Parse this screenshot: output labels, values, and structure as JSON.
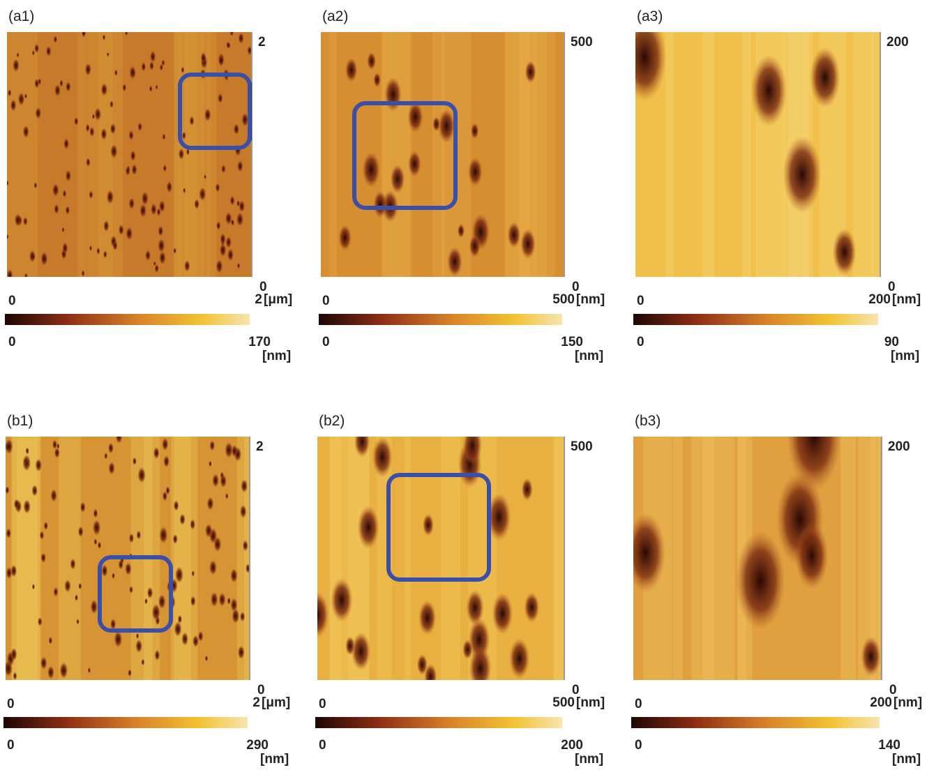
{
  "panels": [
    {
      "label": "(a1)",
      "y_max": "2",
      "y_min": "0",
      "x_min": "0",
      "x_max": "2",
      "xy_unit": "[μm]",
      "colorbar_min": "0",
      "colorbar_max": "170",
      "colorbar_unit": "[nm]"
    },
    {
      "label": "(a2)",
      "y_max": "500",
      "y_min": "0",
      "x_min": "0",
      "x_max": "500",
      "xy_unit": "[nm]",
      "colorbar_min": "0",
      "colorbar_max": "150",
      "colorbar_unit": "[nm]"
    },
    {
      "label": "(a3)",
      "y_max": "200",
      "y_min": "0",
      "x_min": "0",
      "x_max": "200",
      "xy_unit": "[nm]",
      "colorbar_min": "0",
      "colorbar_max": "90",
      "colorbar_unit": "[nm]"
    },
    {
      "label": "(b1)",
      "y_max": "2",
      "y_min": "0",
      "x_min": "0",
      "x_max": "2",
      "xy_unit": "[μm]",
      "colorbar_min": "0",
      "colorbar_max": "290",
      "colorbar_unit": "[nm]"
    },
    {
      "label": "(b2)",
      "y_max": "500",
      "y_min": "0",
      "x_min": "0",
      "x_max": "500",
      "xy_unit": "[nm]",
      "colorbar_min": "0",
      "colorbar_max": "200",
      "colorbar_unit": "[nm]"
    },
    {
      "label": "(b3)",
      "y_max": "200",
      "y_min": "0",
      "x_min": "0",
      "x_max": "200",
      "xy_unit": "[nm]",
      "colorbar_min": "0",
      "colorbar_max": "140",
      "colorbar_unit": "[nm]"
    }
  ]
}
